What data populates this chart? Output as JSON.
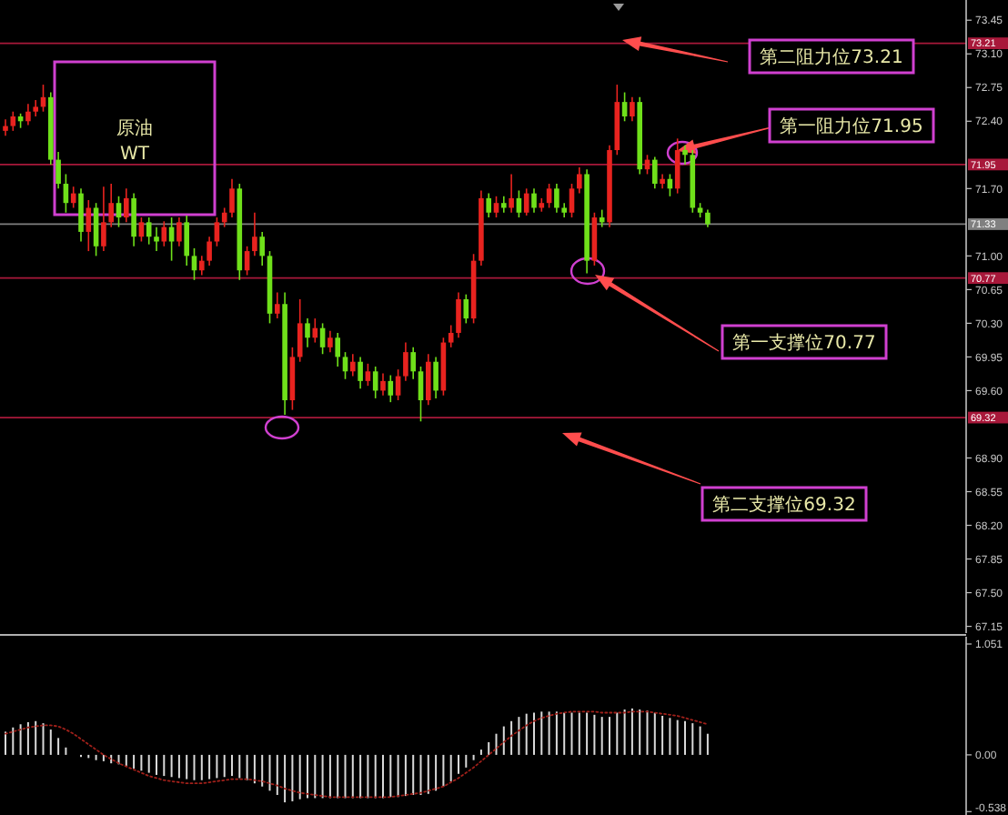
{
  "chart_data": [
    {
      "type": "candlestick",
      "tick_labels": "y",
      "categories": [
        null,
        null,
        null,
        null,
        null,
        null,
        null,
        null,
        null,
        null,
        null,
        null,
        null,
        null,
        null,
        null,
        null,
        null,
        null,
        null,
        null,
        null,
        null,
        null,
        null,
        null,
        null,
        null,
        null,
        null,
        null,
        null,
        null,
        null,
        null,
        null,
        null,
        null,
        null,
        null,
        null,
        null,
        null,
        null,
        null,
        null,
        null,
        null,
        null,
        null,
        null,
        null,
        null,
        null,
        null,
        null,
        null,
        null,
        null,
        null,
        null,
        null,
        null,
        null,
        null,
        null,
        null,
        null,
        null,
        null,
        null,
        null,
        null,
        null,
        null,
        null,
        null,
        null,
        null,
        null,
        null,
        null,
        null,
        null,
        null,
        null,
        null,
        null,
        null,
        null,
        null,
        null,
        null,
        null,
        null,
        null,
        null,
        null,
        null,
        null,
        null,
        null,
        null,
        null,
        null,
        null,
        null,
        null,
        null,
        null,
        null,
        null,
        null,
        null,
        null,
        null,
        null,
        null,
        null,
        null,
        null,
        null,
        null,
        null,
        null,
        null,
        null,
        null
      ],
      "colors": [
        "#e8231f",
        "#e8231f",
        "#6fe01a",
        "#e8231f",
        "#e8231f",
        "#e8231f",
        "#6fe01a",
        "#6fe01a",
        "#6fe01a",
        "#e8231f",
        "#6fe01a",
        "#e8231f",
        "#6fe01a",
        "#e8231f",
        "#e8231f",
        "#6fe01a",
        "#e8231f",
        "#6fe01a",
        "#e8231f",
        "#6fe01a",
        "#6fe01a",
        "#e8231f",
        "#6fe01a",
        "#e8231f",
        "#6fe01a",
        "#6fe01a",
        "#e8231f",
        "#e8231f",
        "#e8231f",
        "#e8231f",
        "#e8231f",
        "#6fe01a",
        "#e8231f",
        "#e8231f",
        "#6fe01a",
        "#6fe01a",
        "#e8231f",
        "#6fe01a",
        "#e8231f",
        "#e8231f",
        "#6fe01a",
        "#e8231f",
        "#6fe01a",
        "#e8231f",
        "#6fe01a",
        "#6fe01a",
        "#e8231f",
        "#6fe01a",
        "#e8231f",
        "#6fe01a",
        "#e8231f",
        "#6fe01a",
        "#e8231f",
        "#e8231f",
        "#6fe01a",
        "#6fe01a",
        "#e8231f",
        "#6fe01a",
        "#e8231f",
        "#e8231f",
        "#e8231f",
        "#6fe01a",
        "#e8231f",
        "#e8231f",
        "#6fe01a",
        "#e8231f",
        "#6fe01a",
        "#e8231f",
        "#6fe01a",
        "#e8231f",
        "#6fe01a",
        "#e8231f",
        "#e8231f",
        "#6fe01a",
        "#6fe01a",
        "#e8231f",
        "#e8231f",
        "#6fe01a",
        "#e8231f",
        "#6fe01a",
        "#e8231f",
        "#e8231f",
        "#6fe01a",
        "#e8231f",
        "#6fe01a",
        "#e8231f",
        "#6fe01a",
        "#e8231f",
        "#6fe01a",
        "#e8231f",
        "#6fe01a",
        "#6fe01a",
        "#6fe01a",
        "#6fe01a",
        null,
        null,
        null,
        null,
        null,
        null,
        null,
        null,
        null,
        null,
        null,
        null,
        null,
        null,
        null,
        null,
        null,
        null,
        null,
        null,
        null,
        null,
        null,
        null,
        null,
        null,
        null,
        null,
        null,
        null,
        null,
        null,
        null,
        null
      ],
      "ohlc": [
        [
          72.3,
          72.42,
          72.25,
          72.35
        ],
        [
          72.35,
          72.5,
          72.3,
          72.45
        ],
        [
          72.45,
          72.48,
          72.33,
          72.4
        ],
        [
          72.4,
          72.58,
          72.36,
          72.5
        ],
        [
          72.5,
          72.62,
          72.45,
          72.55
        ],
        [
          72.55,
          72.78,
          72.5,
          72.65
        ],
        [
          72.65,
          72.7,
          71.95,
          72.0
        ],
        [
          72.0,
          72.08,
          71.7,
          71.75
        ],
        [
          71.75,
          71.85,
          71.45,
          71.55
        ],
        [
          71.55,
          71.72,
          71.5,
          71.65
        ],
        [
          71.65,
          71.7,
          71.15,
          71.25
        ],
        [
          71.25,
          71.58,
          71.05,
          71.5
        ],
        [
          71.5,
          71.55,
          71.0,
          71.1
        ],
        [
          71.1,
          71.72,
          71.05,
          71.35
        ],
        [
          71.35,
          71.75,
          71.3,
          71.55
        ],
        [
          71.55,
          71.62,
          71.3,
          71.4
        ],
        [
          71.4,
          71.7,
          71.35,
          71.6
        ],
        [
          71.6,
          71.65,
          71.1,
          71.2
        ],
        [
          71.2,
          71.4,
          71.15,
          71.35
        ],
        [
          71.35,
          71.4,
          71.12,
          71.2
        ],
        [
          71.2,
          71.3,
          71.05,
          71.15
        ],
        [
          71.15,
          71.36,
          71.1,
          71.3
        ],
        [
          71.3,
          71.4,
          70.95,
          71.15
        ],
        [
          71.15,
          71.4,
          71.1,
          71.35
        ],
        [
          71.35,
          71.42,
          70.9,
          71.0
        ],
        [
          71.0,
          71.08,
          70.75,
          70.85
        ],
        [
          70.85,
          71.0,
          70.8,
          70.95
        ],
        [
          70.95,
          71.2,
          70.9,
          71.15
        ],
        [
          71.15,
          71.4,
          71.1,
          71.35
        ],
        [
          71.35,
          71.5,
          71.3,
          71.45
        ],
        [
          71.45,
          71.8,
          71.4,
          71.7
        ],
        [
          71.7,
          71.75,
          70.75,
          70.85
        ],
        [
          70.85,
          71.1,
          70.8,
          71.05
        ],
        [
          71.05,
          71.45,
          71.0,
          71.2
        ],
        [
          71.2,
          71.25,
          70.9,
          71.0
        ],
        [
          71.0,
          71.05,
          70.3,
          70.4
        ],
        [
          70.4,
          70.62,
          70.35,
          70.5
        ],
        [
          70.5,
          70.62,
          69.35,
          69.5
        ],
        [
          69.5,
          70.05,
          69.4,
          69.95
        ],
        [
          69.95,
          70.55,
          69.9,
          70.3
        ],
        [
          70.3,
          70.35,
          70.05,
          70.15
        ],
        [
          70.15,
          70.35,
          70.1,
          70.25
        ],
        [
          70.25,
          70.3,
          69.98,
          70.05
        ],
        [
          70.05,
          70.22,
          70.0,
          70.15
        ],
        [
          70.15,
          70.2,
          69.85,
          69.95
        ],
        [
          69.95,
          70.0,
          69.72,
          69.8
        ],
        [
          69.8,
          69.98,
          69.75,
          69.9
        ],
        [
          69.9,
          69.95,
          69.62,
          69.7
        ],
        [
          69.7,
          69.88,
          69.65,
          69.8
        ],
        [
          69.8,
          69.85,
          69.52,
          69.6
        ],
        [
          69.6,
          69.78,
          69.55,
          69.7
        ],
        [
          69.7,
          69.76,
          69.48,
          69.55
        ],
        [
          69.55,
          69.82,
          69.5,
          69.75
        ],
        [
          69.75,
          70.1,
          69.7,
          70.0
        ],
        [
          70.0,
          70.05,
          69.72,
          69.8
        ],
        [
          69.8,
          69.85,
          69.28,
          69.5
        ],
        [
          69.5,
          69.98,
          69.45,
          69.9
        ],
        [
          69.9,
          69.95,
          69.52,
          69.6
        ],
        [
          69.6,
          70.15,
          69.55,
          70.1
        ],
        [
          70.1,
          70.28,
          70.05,
          70.2
        ],
        [
          70.2,
          70.62,
          70.15,
          70.55
        ],
        [
          70.55,
          70.6,
          70.3,
          70.35
        ],
        [
          70.35,
          71.02,
          70.3,
          70.95
        ],
        [
          70.95,
          71.68,
          70.9,
          71.6
        ],
        [
          71.6,
          71.65,
          71.4,
          71.45
        ],
        [
          71.45,
          71.62,
          71.4,
          71.55
        ],
        [
          71.55,
          71.62,
          71.45,
          71.5
        ],
        [
          71.5,
          71.85,
          71.45,
          71.6
        ],
        [
          71.6,
          71.68,
          71.4,
          71.45
        ],
        [
          71.45,
          71.7,
          71.42,
          71.65
        ],
        [
          71.65,
          71.7,
          71.45,
          71.5
        ],
        [
          71.5,
          71.6,
          71.46,
          71.55
        ],
        [
          71.55,
          71.75,
          71.5,
          71.7
        ],
        [
          71.7,
          71.75,
          71.45,
          71.5
        ],
        [
          71.5,
          71.55,
          71.4,
          71.45
        ],
        [
          71.45,
          71.75,
          71.4,
          71.7
        ],
        [
          71.7,
          71.92,
          71.65,
          71.85
        ],
        [
          71.85,
          71.9,
          70.82,
          70.95
        ],
        [
          70.95,
          71.45,
          70.9,
          71.4
        ],
        [
          71.4,
          71.48,
          71.3,
          71.35
        ],
        [
          71.35,
          72.15,
          71.3,
          72.1
        ],
        [
          72.1,
          72.78,
          72.05,
          72.6
        ],
        [
          72.6,
          72.7,
          72.4,
          72.45
        ],
        [
          72.45,
          72.65,
          72.4,
          72.6
        ],
        [
          72.6,
          72.65,
          71.85,
          71.9
        ],
        [
          71.9,
          72.05,
          71.85,
          72.0
        ],
        [
          72.0,
          72.03,
          71.7,
          71.75
        ],
        [
          71.75,
          71.85,
          71.7,
          71.8
        ],
        [
          71.8,
          71.85,
          71.62,
          71.7
        ],
        [
          71.7,
          72.22,
          71.65,
          72.1
        ],
        [
          72.1,
          72.15,
          71.95,
          72.05
        ],
        [
          72.05,
          72.1,
          71.45,
          71.5
        ],
        [
          71.5,
          71.55,
          71.4,
          71.45
        ],
        [
          71.45,
          71.48,
          71.3,
          71.33
        ],
        null,
        null,
        null,
        null,
        null,
        null,
        null,
        null,
        null,
        null,
        null,
        null,
        null,
        null,
        null,
        null,
        null,
        null,
        null,
        null,
        null,
        null,
        null,
        null,
        null,
        null,
        null,
        null,
        null,
        null,
        null,
        null,
        null,
        null
      ],
      "ylim": [
        67.08,
        73.66
      ],
      "yticks": [
        73.45,
        {
          "value": 73.1,
          "label": "73.10"
        },
        72.75,
        {
          "value": 72.4,
          "label": "72.40"
        },
        {
          "value": 71.7,
          "label": "71.70"
        },
        {
          "value": 71,
          "label": "71.00"
        },
        70.65,
        {
          "value": 70.3,
          "label": "70.30"
        },
        69.95,
        {
          "value": 69.6,
          "label": "69.60"
        },
        {
          "value": 68.9,
          "label": "68.90"
        },
        68.55,
        {
          "value": 68.2,
          "label": "68.20"
        },
        67.85,
        {
          "value": 67.5,
          "label": "67.50"
        },
        67.15
      ],
      "ref_lines": [
        {
          "axis": "y",
          "value": 73.21,
          "label": "73.21",
          "color": "#a8183a"
        },
        {
          "axis": "y",
          "value": 71.95,
          "label": "71.95",
          "color": "#a8183a"
        },
        {
          "axis": "y",
          "value": 70.77,
          "label": "70.77",
          "color": "#a8183a"
        },
        {
          "axis": "y",
          "value": 69.32,
          "label": "69.32",
          "color": "#a8183a"
        },
        {
          "axis": "y",
          "value": 71.33,
          "label": "71.33",
          "color": "#808080"
        }
      ],
      "annotations": [
        "原油",
        "WT",
        "第二阻力位73.21",
        "第一阻力位71.95",
        "第一支撑位70.77",
        "第二支撑位69.32"
      ]
    },
    {
      "type": "bar",
      "tick_labels": "y",
      "categories": [
        null,
        null,
        null,
        null,
        null,
        null,
        null,
        null,
        null,
        null,
        null,
        null,
        null,
        null,
        null,
        null,
        null,
        null,
        null,
        null,
        null,
        null,
        null,
        null,
        null,
        null,
        null,
        null,
        null,
        null,
        null,
        null,
        null,
        null,
        null,
        null,
        null,
        null,
        null,
        null,
        null,
        null,
        null,
        null,
        null,
        null,
        null,
        null,
        null,
        null,
        null,
        null,
        null,
        null,
        null,
        null,
        null,
        null,
        null,
        null,
        null,
        null,
        null,
        null,
        null,
        null,
        null,
        null,
        null,
        null,
        null,
        null,
        null,
        null,
        null,
        null,
        null,
        null,
        null,
        null,
        null,
        null,
        null,
        null,
        null,
        null,
        null,
        null,
        null,
        null,
        null,
        null,
        null,
        null,
        null,
        null,
        null,
        null,
        null,
        null,
        null,
        null,
        null,
        null,
        null,
        null,
        null,
        null,
        null,
        null,
        null,
        null,
        null,
        null,
        null,
        null,
        null,
        null,
        null,
        null,
        null,
        null,
        null,
        null,
        null,
        null,
        null,
        null
      ],
      "ylim": [
        -0.57,
        1.12
      ],
      "yticks": [
        1.051,
        {
          "value": 0,
          "label": "0.00"
        },
        -0.538
      ],
      "series": [
        {
          "type": "bar",
          "color": "#d9d9d9",
          "values": [
            0.22,
            0.26,
            0.29,
            0.31,
            0.32,
            0.3,
            0.24,
            0.16,
            0.07,
            null,
            -0.02,
            -0.03,
            -0.05,
            -0.06,
            -0.08,
            -0.09,
            -0.11,
            -0.13,
            -0.15,
            -0.17,
            -0.19,
            -0.2,
            -0.21,
            -0.22,
            -0.23,
            -0.24,
            -0.24,
            -0.23,
            -0.22,
            -0.21,
            -0.2,
            -0.22,
            -0.24,
            -0.27,
            -0.3,
            -0.34,
            -0.38,
            -0.45,
            -0.44,
            -0.42,
            -0.41,
            -0.41,
            -0.41,
            -0.41,
            -0.41,
            -0.41,
            -0.41,
            -0.41,
            -0.41,
            -0.41,
            -0.41,
            -0.4,
            -0.4,
            -0.39,
            -0.38,
            -0.38,
            -0.37,
            -0.34,
            -0.3,
            -0.25,
            -0.18,
            -0.12,
            -0.05,
            0.05,
            0.12,
            0.2,
            0.27,
            0.32,
            0.36,
            0.39,
            0.4,
            0.41,
            0.41,
            0.41,
            0.4,
            0.4,
            0.4,
            0.4,
            0.38,
            0.36,
            0.36,
            0.4,
            0.43,
            0.44,
            0.43,
            0.42,
            0.4,
            0.37,
            0.35,
            0.33,
            0.32,
            0.3,
            0.27,
            0.2,
            null,
            null,
            null,
            null,
            null,
            null,
            null,
            null,
            null,
            null,
            null,
            null,
            null,
            null,
            null,
            null,
            null,
            null,
            null,
            null,
            null,
            null,
            null,
            null,
            null,
            null,
            null,
            null,
            null,
            null,
            null,
            null,
            null,
            null
          ]
        },
        {
          "type": "line",
          "color": "#a0201a",
          "line_style": "dotted",
          "values": [
            0.2,
            0.22,
            0.24,
            0.26,
            0.27,
            0.28,
            0.28,
            0.27,
            0.24,
            0.2,
            0.15,
            0.1,
            0.05,
            0.0,
            -0.04,
            -0.08,
            -0.11,
            -0.14,
            -0.17,
            -0.2,
            -0.22,
            -0.24,
            -0.25,
            -0.26,
            -0.27,
            -0.27,
            -0.27,
            -0.26,
            -0.25,
            -0.24,
            -0.23,
            -0.23,
            -0.23,
            -0.24,
            -0.25,
            -0.27,
            -0.29,
            -0.32,
            -0.34,
            -0.36,
            -0.37,
            -0.38,
            -0.39,
            -0.4,
            -0.4,
            -0.4,
            -0.4,
            -0.4,
            -0.4,
            -0.4,
            -0.4,
            -0.4,
            -0.39,
            -0.38,
            -0.37,
            -0.36,
            -0.34,
            -0.32,
            -0.3,
            -0.26,
            -0.22,
            -0.17,
            -0.12,
            -0.06,
            0.0,
            0.06,
            0.12,
            0.18,
            0.23,
            0.28,
            0.32,
            0.35,
            0.37,
            0.39,
            0.4,
            0.41,
            0.41,
            0.41,
            0.41,
            0.4,
            0.4,
            0.4,
            0.4,
            0.41,
            0.41,
            0.41,
            0.4,
            0.39,
            0.38,
            0.37,
            0.35,
            0.33,
            0.31,
            0.29,
            null,
            null,
            null,
            null,
            null,
            null,
            null,
            null,
            null,
            null,
            null,
            null,
            null,
            null,
            null,
            null,
            null,
            null,
            null,
            null,
            null,
            null,
            null,
            null,
            null,
            null,
            null,
            null,
            null,
            null,
            null,
            null,
            null,
            null
          ]
        }
      ]
    }
  ]
}
